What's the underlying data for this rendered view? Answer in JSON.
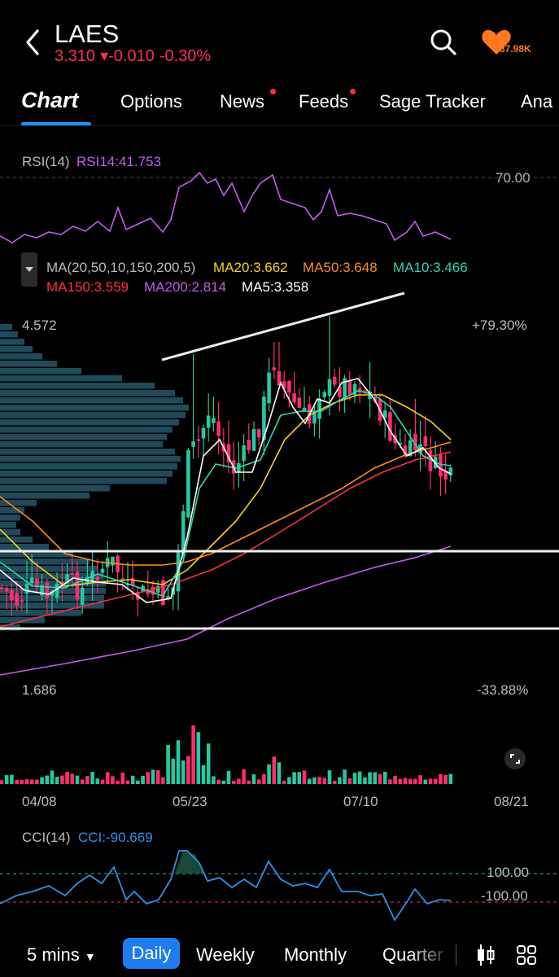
{
  "header": {
    "ticker": "LAES",
    "price": "3.310",
    "change": "▾-0.010",
    "change_pct": "-0.30%",
    "fav_count": "37.98K",
    "icons": [
      "back-arrow-icon",
      "search-icon",
      "heart-icon"
    ]
  },
  "tabs": [
    {
      "label": "Chart",
      "dot": false
    },
    {
      "label": "Options",
      "dot": false
    },
    {
      "label": "News",
      "dot": true
    },
    {
      "label": "Feeds",
      "dot": true
    },
    {
      "label": "Sage Tracker",
      "dot": false
    },
    {
      "label": "Ana",
      "dot": false
    }
  ],
  "rsi": {
    "title": "RSI(14)",
    "value_label": "RSI14:41.753",
    "level": "70.00",
    "color": "#c45cf0"
  },
  "ma": {
    "title": "MA(20,50,10,150,200,5)",
    "items": [
      {
        "label": "MA20:3.662",
        "color": "#f5d416"
      },
      {
        "label": "MA50:3.648",
        "color": "#ff8c1a"
      },
      {
        "label": "MA10:3.466",
        "color": "#2fd6b4"
      },
      {
        "label": "MA150:3.559",
        "color": "#ff3040"
      },
      {
        "label": "MA200:2.814",
        "color": "#c45cf0"
      },
      {
        "label": "MA5:3.358",
        "color": "#ffffff"
      }
    ]
  },
  "price_chart": {
    "high_label": "4.572",
    "high_pct": "+79.30%",
    "low_label": "1.686",
    "low_pct": "-33.88%",
    "up_color": "#25c8a0",
    "down_color": "#ff2d6b",
    "profile_color": "#1f4a5a"
  },
  "x_axis": [
    "04/08",
    "05/23",
    "07/10",
    "08/21"
  ],
  "cci": {
    "title": "CCI(14)",
    "value_label": "CCI:-90.669",
    "upper": "100.00",
    "lower": "-100.00",
    "color": "#2f8fe8"
  },
  "bottom": {
    "interval": "5 mins",
    "periods": [
      "Daily",
      "Weekly",
      "Monthly",
      "Quarter"
    ],
    "active": "Daily",
    "icons": [
      "candlestick-icon",
      "grid-icon",
      "expand-icon"
    ]
  },
  "chart_data": {
    "type": "candlestick",
    "x_labels": [
      "04/08",
      "05/23",
      "07/10",
      "08/21"
    ],
    "y_range": [
      1.686,
      4.572
    ],
    "last_close": 3.31,
    "moving_averages": {
      "MA5": 3.358,
      "MA10": 3.466,
      "MA20": 3.662,
      "MA50": 3.648,
      "MA150": 3.559,
      "MA200": 2.814
    },
    "rsi14": 41.753,
    "cci14": -90.669
  }
}
